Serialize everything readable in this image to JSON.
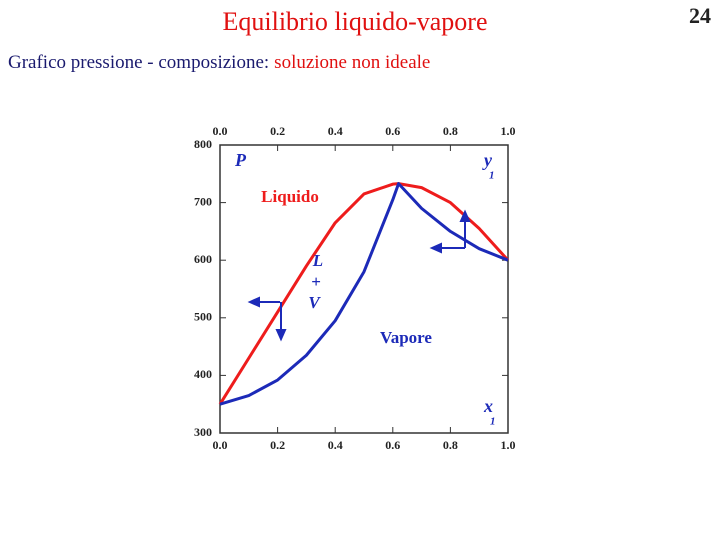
{
  "title": "Equilibrio liquido-vapore",
  "subtitle": {
    "prefix": "Grafico pressione - composizione:",
    "highlight": "soluzione non ideale"
  },
  "page_number": "24",
  "chart_data": {
    "type": "line",
    "series": [
      {
        "name": "Liquido",
        "color": "#ee1c1c",
        "x": [
          0,
          0.1,
          0.2,
          0.3,
          0.4,
          0.5,
          0.6,
          0.62,
          0.7,
          0.8,
          0.9,
          1.0
        ],
        "values": [
          350,
          430,
          510,
          590,
          665,
          715,
          732,
          733,
          726,
          700,
          655,
          600
        ]
      },
      {
        "name": "Vapore",
        "color": "#1c2ab8",
        "x": [
          0,
          0.1,
          0.2,
          0.3,
          0.4,
          0.5,
          0.6,
          0.62,
          0.7,
          0.8,
          0.9,
          1.0
        ],
        "values": [
          350,
          365,
          392,
          435,
          495,
          580,
          705,
          733,
          690,
          650,
          620,
          600
        ]
      }
    ],
    "xlim": [
      0,
      1
    ],
    "ylim": [
      300,
      800
    ],
    "xticks": [
      {
        "value": 0,
        "label": "0.0"
      },
      {
        "value": 0.2,
        "label": "0.2"
      },
      {
        "value": 0.4,
        "label": "0.4"
      },
      {
        "value": 0.6,
        "label": "0.6"
      },
      {
        "value": 0.8,
        "label": "0.8"
      },
      {
        "value": 1,
        "label": "1.0"
      }
    ],
    "yticks": [
      300,
      400,
      500,
      600,
      700,
      800
    ],
    "annotations": {
      "y_axis": "P",
      "top_axis": "y",
      "top_axis_sub": "1",
      "bottom_axis": "x",
      "bottom_axis_sub": "1",
      "region": [
        "L",
        "+",
        "V"
      ]
    }
  }
}
